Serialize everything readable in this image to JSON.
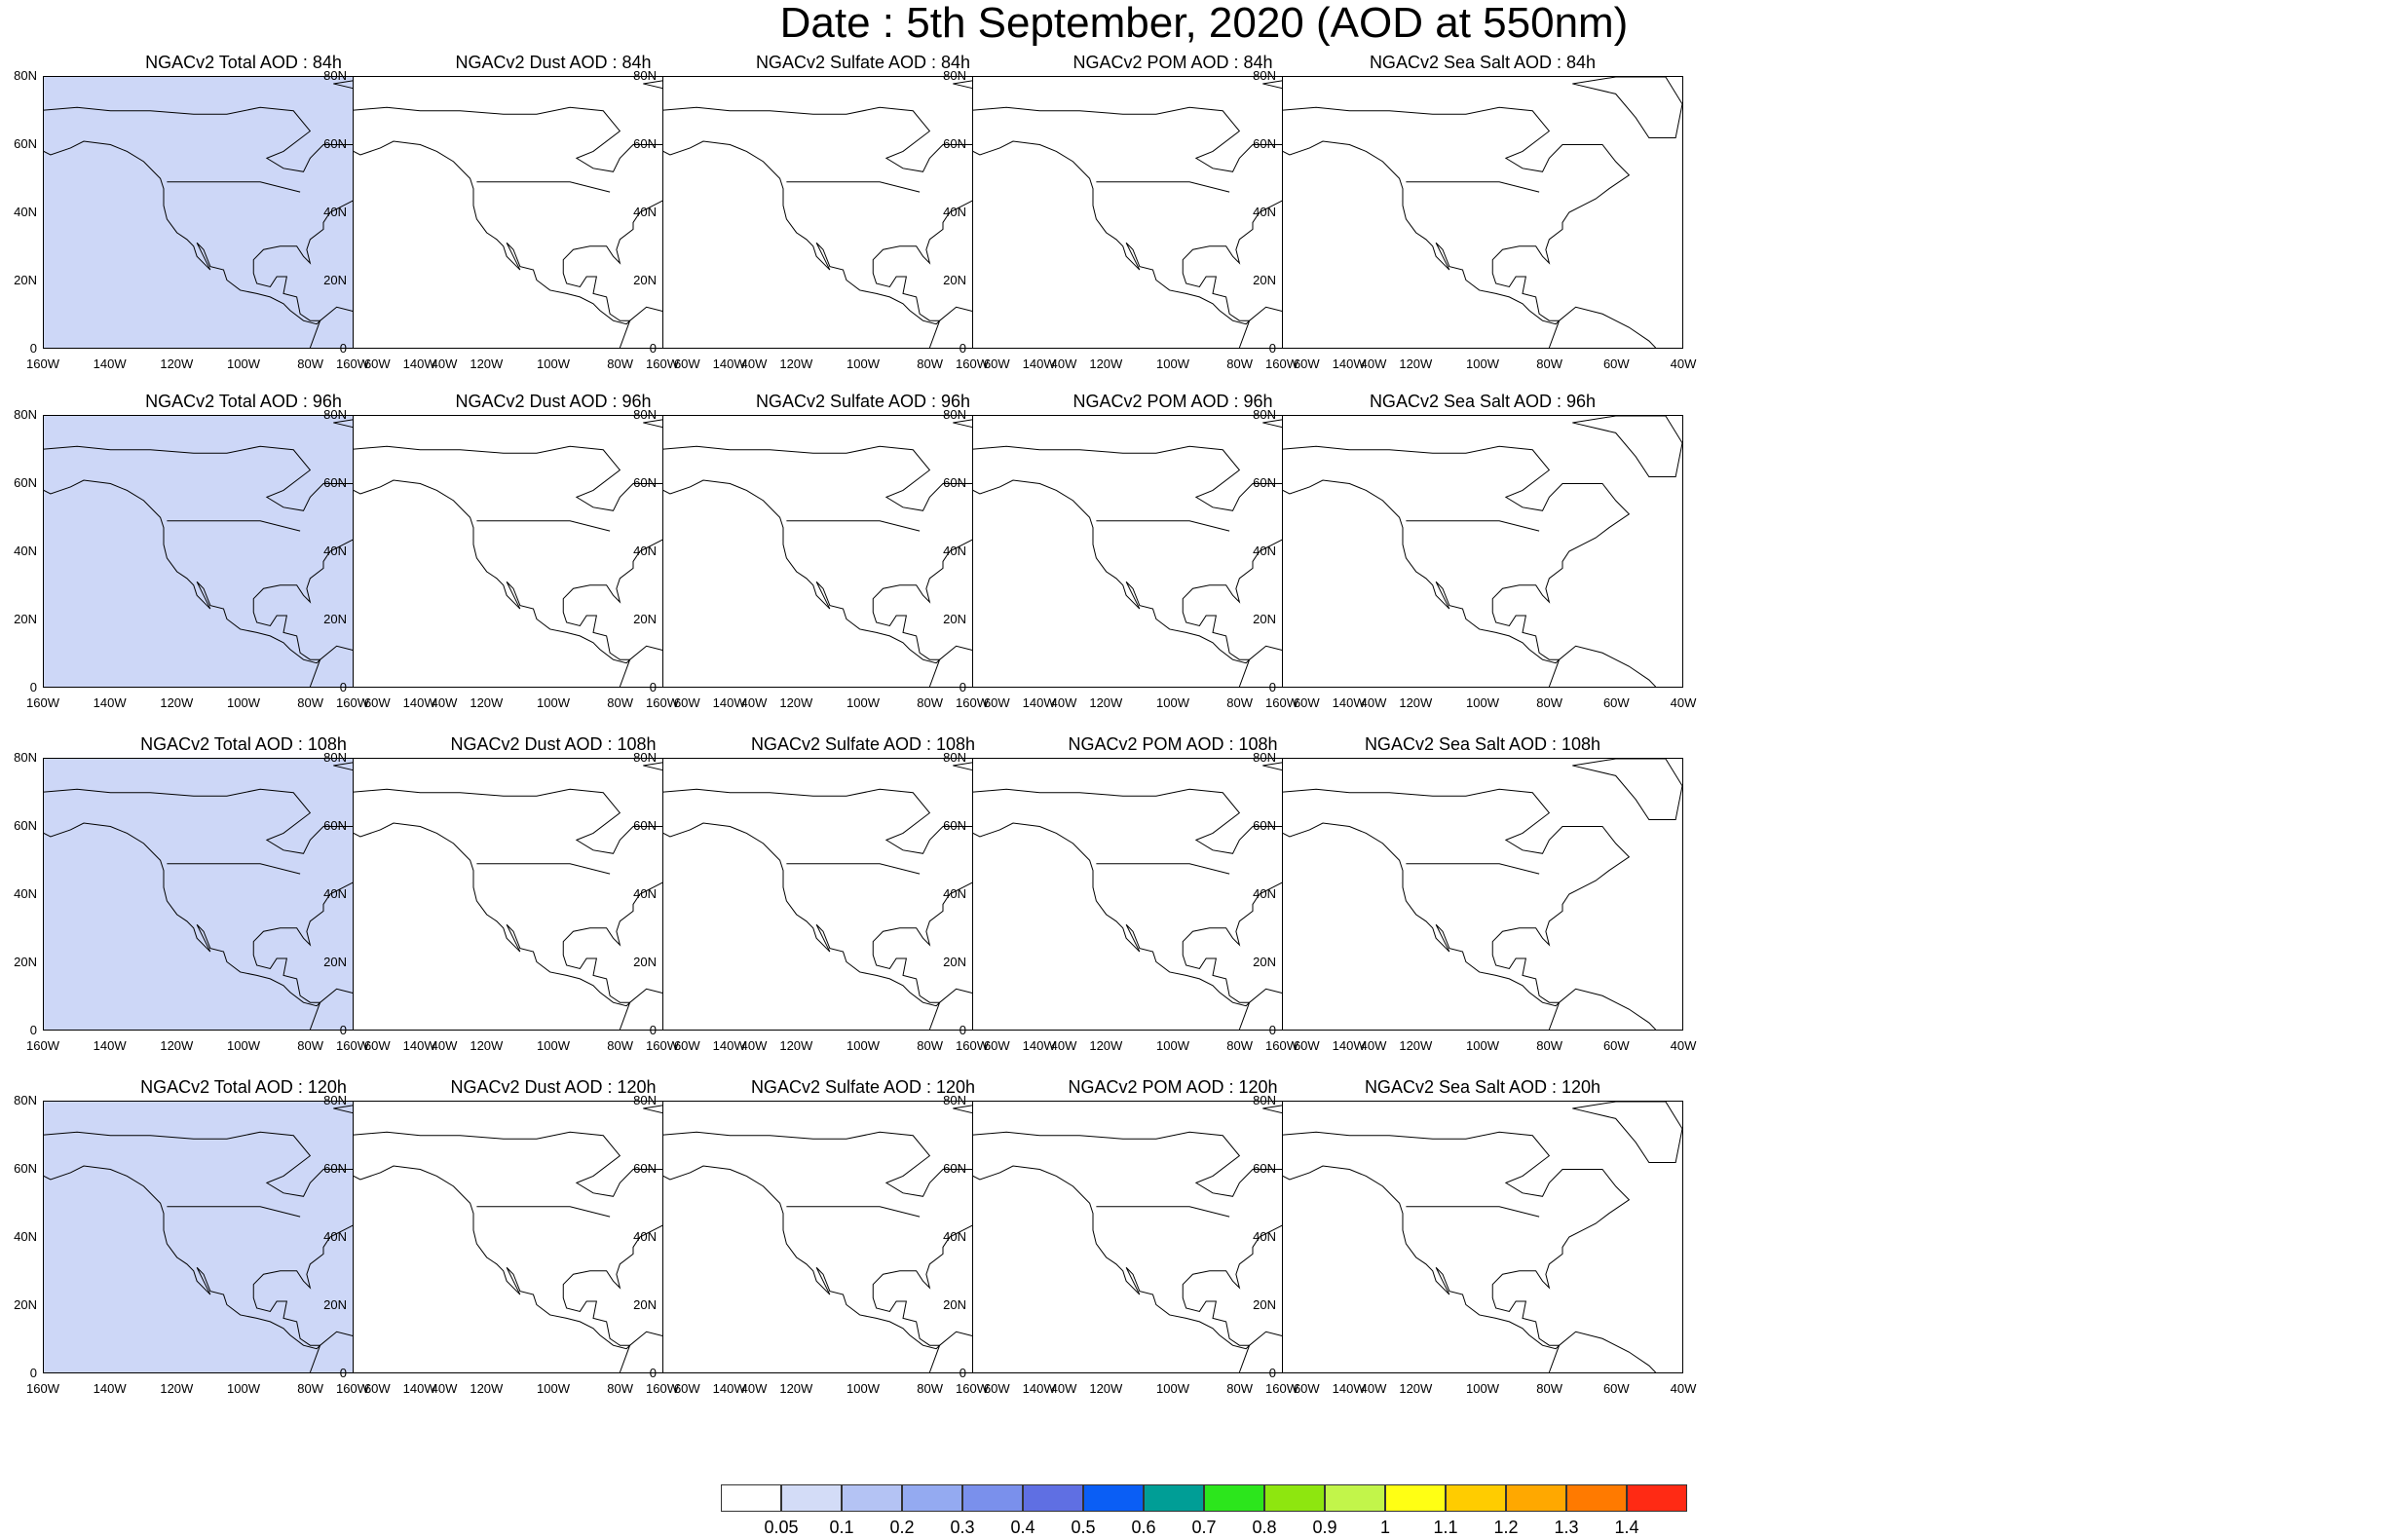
{
  "title": "Date : 5th September, 2020 (AOD at 550nm)",
  "lat_labels": [
    "80N",
    "60N",
    "40N",
    "20N",
    "0"
  ],
  "lon_labels": [
    "160W",
    "140W",
    "120W",
    "100W",
    "80W",
    "60W",
    "40W"
  ],
  "rows": [
    [
      "NGACv2 Total AOD : 84h",
      "NGACv2 Dust AOD : 84h",
      "NGACv2 Sulfate AOD : 84h",
      "NGACv2 POM AOD : 84h",
      "NGACv2 Sea Salt AOD : 84h"
    ],
    [
      "NGACv2 Total AOD : 96h",
      "NGACv2 Dust AOD : 96h",
      "NGACv2 Sulfate AOD : 96h",
      "NGACv2 POM AOD : 96h",
      "NGACv2 Sea Salt AOD : 96h"
    ],
    [
      "NGACv2 Total AOD : 108h",
      "NGACv2 Dust AOD : 108h",
      "NGACv2 Sulfate AOD : 108h",
      "NGACv2 POM AOD : 108h",
      "NGACv2 Sea Salt AOD : 108h"
    ],
    [
      "NGACv2 Total AOD : 120h",
      "NGACv2 Dust AOD : 120h",
      "NGACv2 Sulfate AOD : 120h",
      "NGACv2 POM AOD : 120h",
      "NGACv2 Sea Salt  AOD : 120h"
    ]
  ],
  "colorbar": {
    "labels": [
      "0.05",
      "0.1",
      "0.2",
      "0.3",
      "0.4",
      "0.5",
      "0.6",
      "0.7",
      "0.8",
      "0.9",
      "1",
      "1.1",
      "1.2",
      "1.3",
      "1.4"
    ],
    "colors": [
      "#ffffff",
      "#d3dcf7",
      "#b4c3f4",
      "#94aaf1",
      "#7a90ec",
      "#5f6fe3",
      "#0a5ef5",
      "#009e96",
      "#2ce61c",
      "#8ee60f",
      "#c2f54a",
      "#ffff14",
      "#ffcc00",
      "#ffa800",
      "#ff7a00",
      "#ff2a14"
    ]
  },
  "panel_fills": [
    [
      "#cdd7f7",
      "#ffffff",
      "#ffffff",
      "#ffffff",
      "#ffffff"
    ],
    [
      "#cdd7f7",
      "#ffffff",
      "#ffffff",
      "#ffffff",
      "#ffffff"
    ],
    [
      "#cdd7f7",
      "#ffffff",
      "#ffffff",
      "#ffffff",
      "#ffffff"
    ],
    [
      "#cdd7f7",
      "#ffffff",
      "#ffffff",
      "#ffffff",
      "#ffffff"
    ]
  ]
}
